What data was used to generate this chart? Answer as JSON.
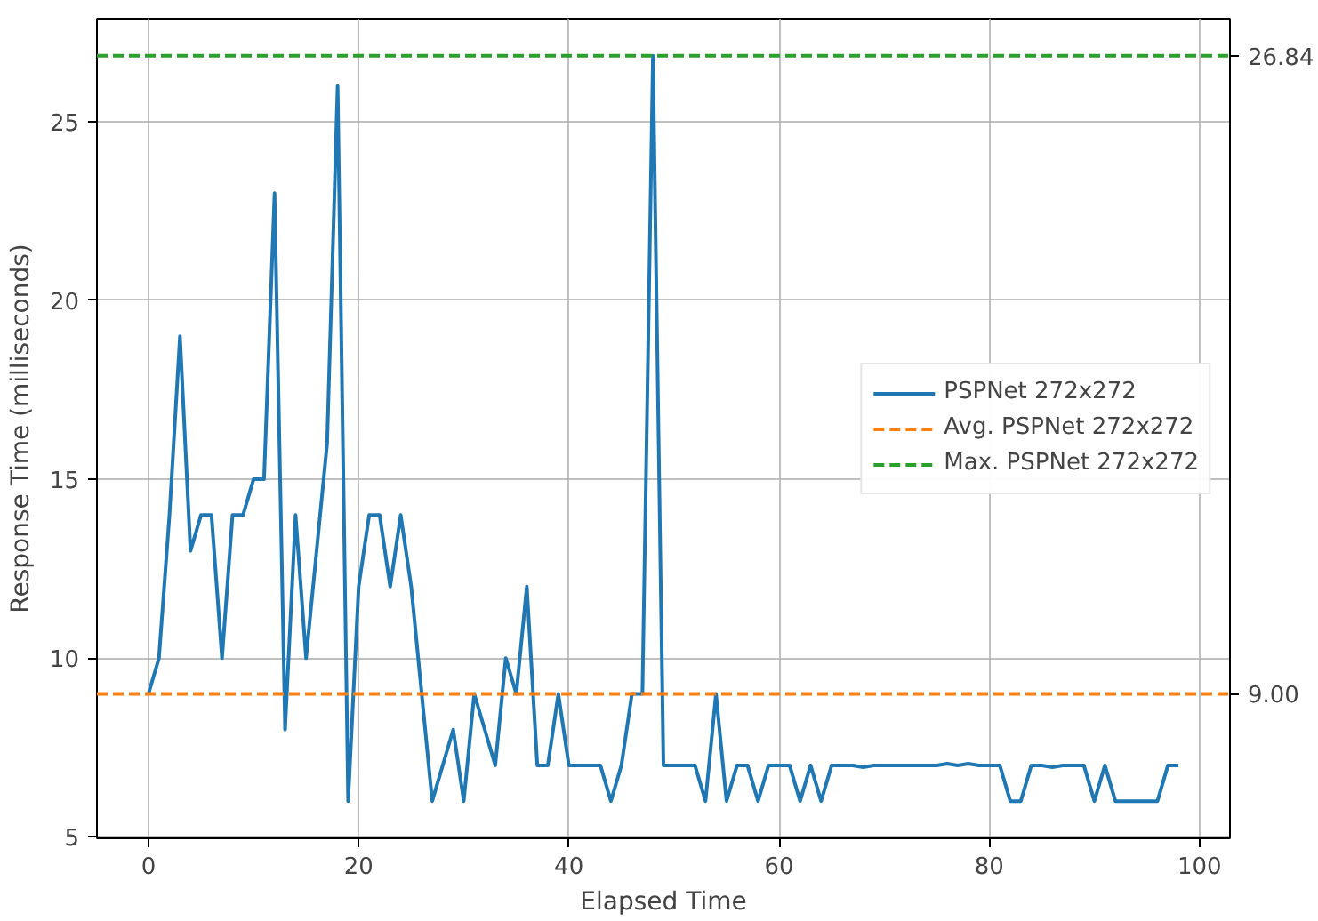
{
  "chart_data": {
    "type": "line",
    "xlabel": "Elapsed Time",
    "ylabel": "Response Time (milliseconds)",
    "x": [
      0,
      1,
      2,
      3,
      4,
      5,
      6,
      7,
      8,
      9,
      10,
      11,
      12,
      13,
      14,
      15,
      16,
      17,
      18,
      19,
      20,
      21,
      22,
      23,
      24,
      25,
      26,
      27,
      28,
      29,
      30,
      31,
      32,
      33,
      34,
      35,
      36,
      37,
      38,
      39,
      40,
      41,
      42,
      43,
      44,
      45,
      46,
      47,
      48,
      49,
      50,
      51,
      52,
      53,
      54,
      55,
      56,
      57,
      58,
      59,
      60,
      61,
      62,
      63,
      64,
      65,
      66,
      67,
      68,
      69,
      70,
      71,
      72,
      73,
      74,
      75,
      76,
      77,
      78,
      79,
      80,
      81,
      82,
      83,
      84,
      85,
      86,
      87,
      88,
      89,
      90,
      91,
      92,
      93,
      94,
      95,
      96,
      97,
      98
    ],
    "series": [
      {
        "name": "PSPNet 272x272",
        "color": "#1f77b4",
        "values": [
          9,
          10,
          14,
          19,
          13,
          14,
          14,
          10,
          14,
          14,
          15,
          15,
          23,
          8,
          14,
          10,
          13,
          16,
          26,
          6,
          12,
          14,
          14,
          12,
          14,
          12,
          9,
          6,
          7,
          8,
          6,
          9,
          8,
          7,
          10,
          9,
          12,
          7,
          7,
          9,
          7,
          7,
          7,
          7,
          6,
          7,
          9,
          9,
          26.84,
          7,
          7,
          7,
          7,
          6,
          9,
          6,
          7,
          7,
          6,
          7,
          7,
          7,
          6,
          7,
          6,
          7,
          7,
          7,
          6.95,
          7,
          7,
          7,
          7,
          7,
          7,
          7,
          7.05,
          7,
          7.05,
          7,
          7,
          7,
          6,
          6,
          7,
          7,
          6.95,
          7,
          7,
          7,
          6,
          7,
          6,
          6,
          6,
          6,
          6,
          7,
          7
        ]
      }
    ],
    "ref_lines": [
      {
        "axis": "y",
        "value": 9.0,
        "label": "Avg. PSPNet 272x272",
        "color": "#ff7f0e",
        "line_style": "dashed"
      },
      {
        "axis": "y",
        "value": 26.84,
        "label": "Max. PSPNet 272x272",
        "color": "#2ca02c",
        "line_style": "dashed"
      }
    ],
    "xlim": [
      -4.9,
      102.9
    ],
    "xticks": [
      0,
      20,
      40,
      60,
      80,
      100
    ],
    "ylim": [
      4.96,
      27.88
    ],
    "yticks": [
      5,
      10,
      15,
      20,
      25
    ],
    "y2lim": [
      4.96,
      27.88
    ],
    "y2ticks": [
      {
        "value": 9.0,
        "label": "9.00"
      },
      {
        "value": 26.84,
        "label": "26.84"
      }
    ],
    "grid": true,
    "legend": "right",
    "marker": "none",
    "line_style": "solid"
  }
}
